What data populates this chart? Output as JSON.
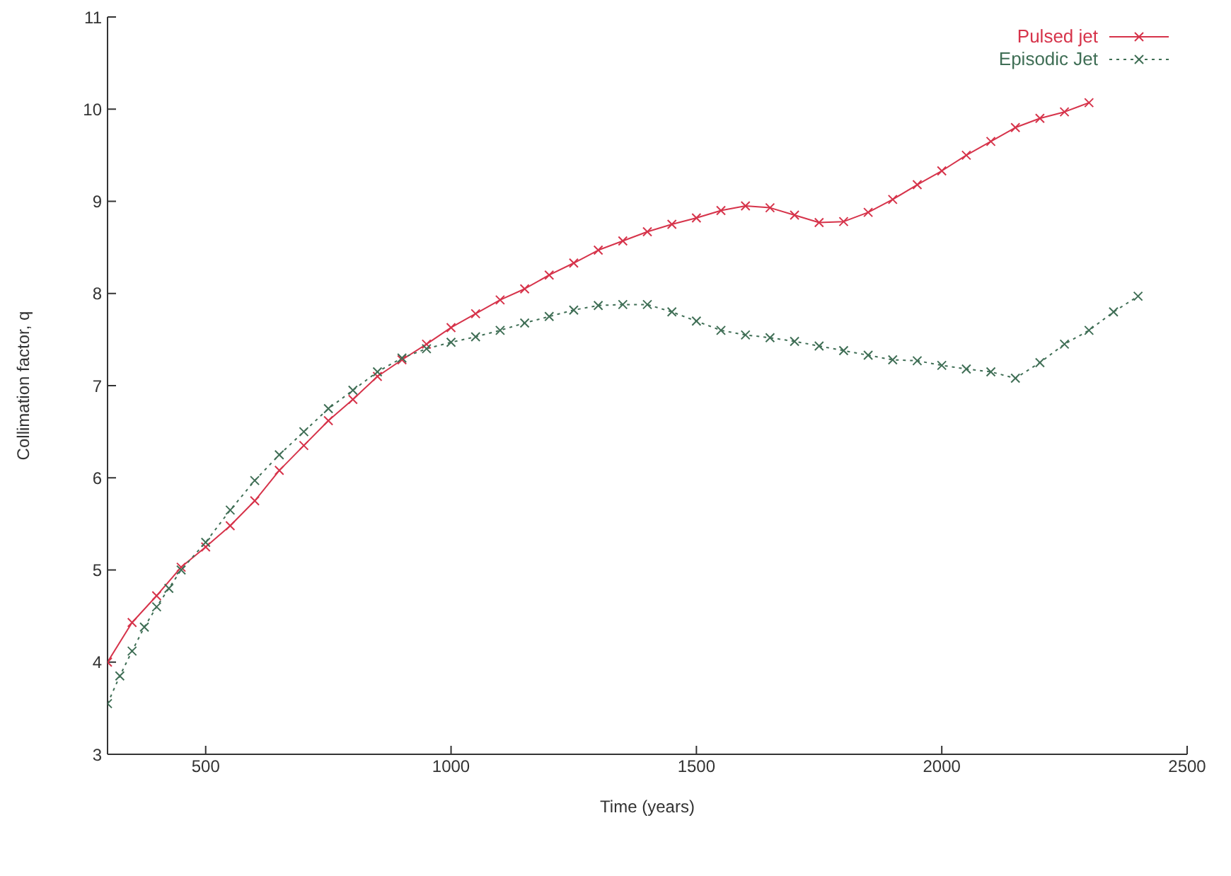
{
  "chart_data": {
    "type": "line",
    "xlabel": "Time (years)",
    "ylabel": "Collimation factor, q",
    "xlim": [
      300,
      2500
    ],
    "xticks": [
      500,
      1000,
      1500,
      2000,
      2500
    ],
    "ylim": [
      3,
      11
    ],
    "yticks": [
      3,
      4,
      5,
      6,
      7,
      8,
      9,
      10,
      11
    ],
    "legend": "top right",
    "marker": "cross",
    "series": [
      {
        "name": "Pulsed jet",
        "color": "#d6334a",
        "line_style": "solid",
        "x": [
          300,
          350,
          400,
          450,
          500,
          550,
          600,
          650,
          700,
          750,
          800,
          850,
          900,
          950,
          1000,
          1050,
          1100,
          1150,
          1200,
          1250,
          1300,
          1350,
          1400,
          1450,
          1500,
          1550,
          1600,
          1650,
          1700,
          1750,
          1800,
          1850,
          1900,
          1950,
          2000,
          2050,
          2100,
          2150,
          2200,
          2250,
          2300
        ],
        "values": [
          4.0,
          4.43,
          4.72,
          5.03,
          5.25,
          5.48,
          5.75,
          6.08,
          6.35,
          6.62,
          6.85,
          7.1,
          7.28,
          7.45,
          7.63,
          7.78,
          7.93,
          8.05,
          8.2,
          8.33,
          8.47,
          8.57,
          8.67,
          8.75,
          8.82,
          8.9,
          8.95,
          8.93,
          8.85,
          8.77,
          8.78,
          8.88,
          9.02,
          9.18,
          9.33,
          9.5,
          9.65,
          9.8,
          9.9,
          9.97,
          10.07
        ]
      },
      {
        "name": "Episodic Jet",
        "color": "#3f6e55",
        "line_style": "dotted",
        "x": [
          300,
          325,
          350,
          375,
          400,
          425,
          450,
          500,
          550,
          600,
          650,
          700,
          750,
          800,
          850,
          900,
          950,
          1000,
          1050,
          1100,
          1150,
          1200,
          1250,
          1300,
          1350,
          1400,
          1450,
          1500,
          1550,
          1600,
          1650,
          1700,
          1750,
          1800,
          1850,
          1900,
          1950,
          2000,
          2050,
          2100,
          2150,
          2200,
          2250,
          2300,
          2350,
          2400
        ],
        "values": [
          3.55,
          3.85,
          4.12,
          4.38,
          4.6,
          4.8,
          5.0,
          5.3,
          5.65,
          5.97,
          6.25,
          6.5,
          6.75,
          6.95,
          7.15,
          7.3,
          7.4,
          7.47,
          7.53,
          7.6,
          7.68,
          7.75,
          7.82,
          7.87,
          7.88,
          7.88,
          7.8,
          7.7,
          7.6,
          7.55,
          7.52,
          7.48,
          7.43,
          7.38,
          7.33,
          7.28,
          7.27,
          7.22,
          7.18,
          7.15,
          7.08,
          7.25,
          7.45,
          7.6,
          7.8,
          7.97
        ]
      }
    ]
  }
}
